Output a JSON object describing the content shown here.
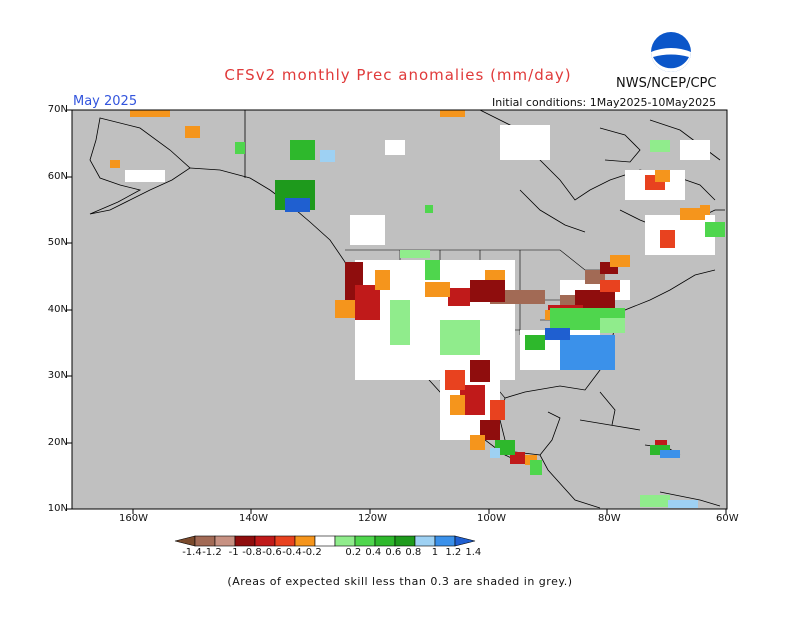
{
  "title": "CFSv2 monthly Prec anomalies (mm/day)",
  "agency": "NWS/NCEP/CPC",
  "month": "May 2025",
  "initial_conditions": "Initial conditions: 1May2025-10May2025",
  "logo_text": "NOAA",
  "lat_labels": [
    "70N",
    "60N",
    "50N",
    "40N",
    "30N",
    "20N",
    "10N"
  ],
  "lon_labels": [
    "160W",
    "140W",
    "120W",
    "100W",
    "80W",
    "60W"
  ],
  "colorbar": {
    "labels": [
      "-1.4",
      "-1.2",
      "-1",
      "-0.8",
      "-0.6",
      "-0.4",
      "-0.2",
      "0.2",
      "0.4",
      "0.6",
      "0.8",
      "1",
      "1.2",
      "1.4"
    ],
    "colors": [
      "#7a4a2c",
      "#a26a55",
      "#c79182",
      "#8f0d0d",
      "#c01a1a",
      "#e8421f",
      "#f5951c",
      "#ffffff",
      "#90ec8c",
      "#4fd64d",
      "#2eb82c",
      "#1e9a1c",
      "#9ed1f3",
      "#3b91ea",
      "#1f5fd0"
    ]
  },
  "footnote": "(Areas of expected skill less than 0.3 are shaded in grey.)",
  "colors": {
    "grey_low_skill": "#c0c0c0",
    "title": "#e03a3a",
    "month": "#3355dd"
  }
}
